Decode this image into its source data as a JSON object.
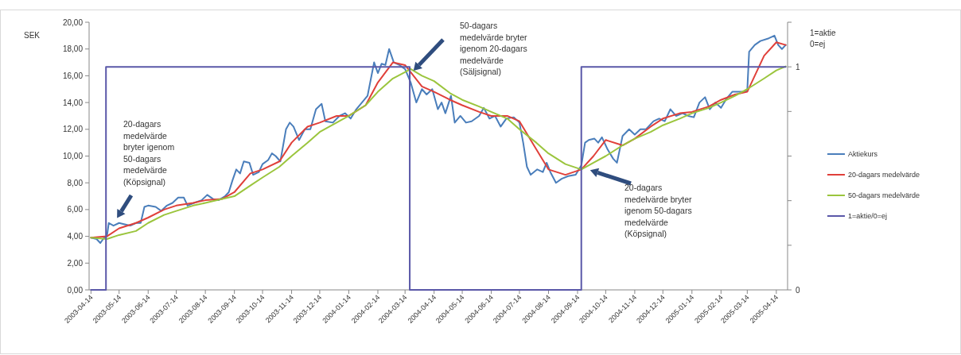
{
  "chart_data": {
    "type": "line",
    "ylabel": "SEK",
    "y2label": "1=aktie\n0=ej",
    "xlim": [
      "2003-04-12",
      "2005-04-26"
    ],
    "xticks": [
      "2003-04-14",
      "2003-05-14",
      "2003-06-14",
      "2003-07-14",
      "2003-08-14",
      "2003-09-14",
      "2003-10-14",
      "2003-11-14",
      "2003-12-14",
      "2004-01-14",
      "2004-02-14",
      "2004-03-14",
      "2004-04-14",
      "2004-05-14",
      "2004-06-14",
      "2004-07-14",
      "2004-08-14",
      "2004-09-14",
      "2004-10-14",
      "2004-11-14",
      "2004-12-14",
      "2005-01-14",
      "2005-02-14",
      "2005-03-14",
      "2005-04-14"
    ],
    "ylim": [
      0,
      20
    ],
    "yticks": [
      {
        "value": 0,
        "label": "0,00"
      },
      {
        "value": 2,
        "label": "2,00"
      },
      {
        "value": 4,
        "label": "4,00"
      },
      {
        "value": 6,
        "label": "6,00"
      },
      {
        "value": 8,
        "label": "8,00"
      },
      {
        "value": 10,
        "label": "10,00"
      },
      {
        "value": 12,
        "label": "12,00"
      },
      {
        "value": 14,
        "label": "14,00"
      },
      {
        "value": 16,
        "label": "16,00"
      },
      {
        "value": 18,
        "label": "18,00"
      },
      {
        "value": 20,
        "label": "20,00"
      }
    ],
    "y2lim": [
      0,
      1.2
    ],
    "y2ticks": [
      0,
      {
        "value": 0.2,
        "label": null
      },
      {
        "value": 0.4,
        "label": null
      },
      {
        "value": 0.6,
        "label": null
      },
      {
        "value": 0.8,
        "label": null
      },
      1,
      {
        "value": 1.2,
        "label": null
      }
    ],
    "grid": false,
    "legend": "right",
    "marker": "none",
    "line_style": "solid",
    "series": [
      {
        "name": "Aktiekurs",
        "color": "#4a7ebb",
        "x": [
          "2003-04-14",
          "2003-04-20",
          "2003-04-24",
          "2003-04-28",
          "2003-05-01",
          "2003-05-03",
          "2003-05-08",
          "2003-05-14",
          "2003-05-20",
          "2003-05-26",
          "2003-06-01",
          "2003-06-06",
          "2003-06-10",
          "2003-06-14",
          "2003-06-22",
          "2003-06-28",
          "2003-07-04",
          "2003-07-10",
          "2003-07-16",
          "2003-07-22",
          "2003-07-26",
          "2003-08-02",
          "2003-08-10",
          "2003-08-16",
          "2003-08-22",
          "2003-08-28",
          "2003-09-04",
          "2003-09-08",
          "2003-09-12",
          "2003-09-16",
          "2003-09-20",
          "2003-09-24",
          "2003-09-30",
          "2003-10-04",
          "2003-10-10",
          "2003-10-14",
          "2003-10-20",
          "2003-10-24",
          "2003-10-28",
          "2003-11-02",
          "2003-11-08",
          "2003-11-12",
          "2003-11-16",
          "2003-11-22",
          "2003-11-28",
          "2003-12-04",
          "2003-12-10",
          "2003-12-16",
          "2003-12-20",
          "2003-12-28",
          "2004-01-04",
          "2004-01-10",
          "2004-01-16",
          "2004-01-22",
          "2004-01-28",
          "2004-02-03",
          "2004-02-10",
          "2004-02-14",
          "2004-02-18",
          "2004-02-22",
          "2004-02-26",
          "2004-03-02",
          "2004-03-08",
          "2004-03-14",
          "2004-03-20",
          "2004-03-26",
          "2004-04-01",
          "2004-04-06",
          "2004-04-12",
          "2004-04-18",
          "2004-04-22",
          "2004-04-26",
          "2004-05-02",
          "2004-05-06",
          "2004-05-12",
          "2004-05-18",
          "2004-05-24",
          "2004-06-01",
          "2004-06-06",
          "2004-06-12",
          "2004-06-18",
          "2004-06-24",
          "2004-06-30",
          "2004-07-08",
          "2004-07-14",
          "2004-07-18",
          "2004-07-22",
          "2004-07-26",
          "2004-08-02",
          "2004-08-08",
          "2004-08-12",
          "2004-08-16",
          "2004-08-22",
          "2004-08-28",
          "2004-09-04",
          "2004-09-12",
          "2004-09-18",
          "2004-09-22",
          "2004-09-26",
          "2004-10-02",
          "2004-10-06",
          "2004-10-10",
          "2004-10-16",
          "2004-10-22",
          "2004-10-26",
          "2004-11-01",
          "2004-11-08",
          "2004-11-14",
          "2004-11-20",
          "2004-11-26",
          "2004-12-04",
          "2004-12-10",
          "2004-12-16",
          "2004-12-22",
          "2004-12-28",
          "2005-01-04",
          "2005-01-10",
          "2005-01-16",
          "2005-01-22",
          "2005-01-28",
          "2005-02-02",
          "2005-02-08",
          "2005-02-14",
          "2005-02-20",
          "2005-02-26",
          "2005-03-04",
          "2005-03-10",
          "2005-03-14",
          "2005-03-16",
          "2005-03-22",
          "2005-03-28",
          "2005-04-06",
          "2005-04-12",
          "2005-04-16",
          "2005-04-20",
          "2005-04-24"
        ],
        "values": [
          3.9,
          3.8,
          3.5,
          3.9,
          4.0,
          5.0,
          4.8,
          5.0,
          4.9,
          4.8,
          5.0,
          5.0,
          6.2,
          6.3,
          6.2,
          5.9,
          6.3,
          6.5,
          6.9,
          6.9,
          6.3,
          6.5,
          6.7,
          7.1,
          6.8,
          6.7,
          7.0,
          7.3,
          8.2,
          9.0,
          8.7,
          9.6,
          9.5,
          8.6,
          8.8,
          9.4,
          9.7,
          10.2,
          10.0,
          9.6,
          12.0,
          12.5,
          12.2,
          11.2,
          12.0,
          12.0,
          13.5,
          13.9,
          12.6,
          12.5,
          13.0,
          13.2,
          12.8,
          13.5,
          14.0,
          14.5,
          17.0,
          16.2,
          16.9,
          16.8,
          18.0,
          17.0,
          16.8,
          16.5,
          15.5,
          14.0,
          15.0,
          14.6,
          15.0,
          13.5,
          14.0,
          13.2,
          14.5,
          12.5,
          13.0,
          12.5,
          12.6,
          13.0,
          13.6,
          12.8,
          13.0,
          12.2,
          12.8,
          12.9,
          12.5,
          11.0,
          9.2,
          8.6,
          9.0,
          8.8,
          9.5,
          8.8,
          8.0,
          8.3,
          8.5,
          8.6,
          9.3,
          11.0,
          11.2,
          11.3,
          11.0,
          11.4,
          10.5,
          9.8,
          9.5,
          11.5,
          12.0,
          11.6,
          12.0,
          12.0,
          12.6,
          12.8,
          12.6,
          13.5,
          13.0,
          13.2,
          13.0,
          12.9,
          14.0,
          14.4,
          13.5,
          14.0,
          13.6,
          14.3,
          14.8,
          14.8,
          14.8,
          14.9,
          17.8,
          18.3,
          18.6,
          18.8,
          19.0,
          18.3,
          18.0,
          18.3
        ]
      },
      {
        "name": "20-dagars medelvärde",
        "color": "#e0403a",
        "x": [
          "2003-04-14",
          "2003-05-01",
          "2003-05-14",
          "2003-06-01",
          "2003-06-14",
          "2003-07-01",
          "2003-07-14",
          "2003-08-01",
          "2003-08-14",
          "2003-09-01",
          "2003-09-14",
          "2003-10-01",
          "2003-10-14",
          "2003-11-01",
          "2003-11-14",
          "2003-12-01",
          "2003-12-14",
          "2004-01-01",
          "2004-01-14",
          "2004-02-01",
          "2004-02-14",
          "2004-03-01",
          "2004-03-14",
          "2004-04-01",
          "2004-04-14",
          "2004-05-01",
          "2004-05-14",
          "2004-06-01",
          "2004-06-14",
          "2004-07-01",
          "2004-07-14",
          "2004-08-01",
          "2004-08-14",
          "2004-09-01",
          "2004-09-18",
          "2004-10-01",
          "2004-10-14",
          "2004-11-01",
          "2004-11-14",
          "2004-12-01",
          "2004-12-14",
          "2005-01-01",
          "2005-01-14",
          "2005-02-01",
          "2005-02-14",
          "2005-03-01",
          "2005-03-14",
          "2005-04-01",
          "2005-04-14",
          "2005-04-24"
        ],
        "values": [
          3.9,
          4.0,
          4.6,
          5.0,
          5.4,
          6.0,
          6.3,
          6.5,
          6.7,
          6.8,
          7.3,
          8.7,
          9.0,
          9.6,
          11.0,
          12.2,
          12.5,
          13.0,
          13.0,
          13.8,
          15.5,
          17.0,
          16.8,
          15.2,
          14.8,
          14.2,
          13.8,
          13.3,
          13.0,
          13.0,
          12.6,
          10.5,
          9.0,
          8.6,
          9.0,
          10.0,
          11.2,
          10.8,
          11.3,
          12.2,
          12.8,
          13.2,
          13.3,
          13.7,
          14.2,
          14.6,
          14.8,
          17.5,
          18.5,
          18.3
        ]
      },
      {
        "name": "50-dagars medelvärde",
        "color": "#9bc53d",
        "x": [
          "2003-04-14",
          "2003-05-01",
          "2003-05-14",
          "2003-06-01",
          "2003-06-14",
          "2003-07-01",
          "2003-07-14",
          "2003-08-01",
          "2003-08-14",
          "2003-09-01",
          "2003-09-14",
          "2003-10-01",
          "2003-10-14",
          "2003-11-01",
          "2003-11-14",
          "2003-12-01",
          "2003-12-14",
          "2004-01-01",
          "2004-01-14",
          "2004-02-01",
          "2004-02-14",
          "2004-03-01",
          "2004-03-20",
          "2004-04-01",
          "2004-04-14",
          "2004-05-01",
          "2004-05-14",
          "2004-06-01",
          "2004-06-14",
          "2004-07-01",
          "2004-07-14",
          "2004-08-01",
          "2004-08-14",
          "2004-09-01",
          "2004-09-18",
          "2004-10-01",
          "2004-10-14",
          "2004-11-01",
          "2004-11-14",
          "2004-12-01",
          "2004-12-14",
          "2005-01-01",
          "2005-01-14",
          "2005-02-01",
          "2005-02-14",
          "2005-03-01",
          "2005-03-14",
          "2005-04-01",
          "2005-04-14",
          "2005-04-24"
        ],
        "values": [
          3.9,
          3.8,
          4.1,
          4.4,
          5.0,
          5.6,
          5.9,
          6.3,
          6.5,
          6.8,
          7.0,
          7.8,
          8.4,
          9.2,
          10.0,
          11.0,
          11.8,
          12.5,
          13.0,
          13.8,
          14.8,
          15.8,
          16.5,
          16.0,
          15.6,
          14.7,
          14.2,
          13.7,
          13.3,
          12.8,
          12.0,
          11.0,
          10.2,
          9.4,
          9.0,
          9.5,
          10.0,
          10.8,
          11.3,
          11.8,
          12.3,
          12.8,
          13.2,
          13.6,
          14.0,
          14.5,
          15.0,
          15.8,
          16.4,
          16.7
        ]
      },
      {
        "name": "1=aktie/0=ej",
        "color": "#5a58a8",
        "axis": "y2",
        "x": [
          "2003-04-14",
          "2003-04-30",
          "2003-04-30",
          "2004-03-19",
          "2004-03-19",
          "2004-09-18",
          "2004-09-18",
          "2005-04-24"
        ],
        "values": [
          0,
          0,
          1,
          1,
          0,
          0,
          1,
          1
        ]
      }
    ],
    "annotations": [
      "20-dagars\nmedelvärde\nbryter igenom\n50-dagars\nmedelvärde\n(Köpsignal)",
      "50-dagars\nmedelvärde bryter\nigenom 20-dagars\nmedelvärde\n(Säljsignal)",
      "20-dagars\nmedelvärde bryter\nigenom 50-dagars\nmedelvärde\n(Köpsignal)"
    ]
  }
}
